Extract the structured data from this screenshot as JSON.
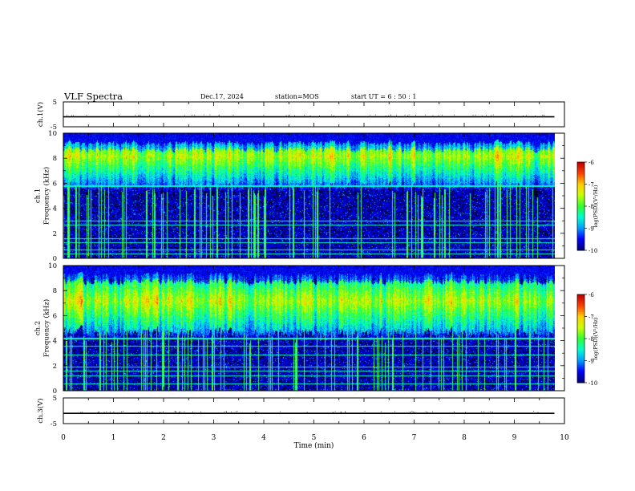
{
  "header": {
    "title": "VLF Spectra",
    "date": "Dec.17, 2024",
    "station": "station=MOS",
    "start": "start  UT =   6 : 50 : 1"
  },
  "chart_data": [
    {
      "type": "line",
      "panel": "ch.1 waveform",
      "ylabel": "ch.1(V)",
      "ylim": [
        -5,
        5
      ],
      "yticks": [
        5,
        -5
      ],
      "xlim": [
        0,
        10
      ],
      "series": [
        {
          "x": [
            0,
            9.8
          ],
          "values": [
            -1,
            -1
          ]
        }
      ]
    },
    {
      "type": "heatmap",
      "panel": "ch.1 spectrogram",
      "ylabel": "ch.1\nFrequency (kHz)",
      "ylim": [
        0,
        10
      ],
      "yticks": [
        0,
        2,
        4,
        6,
        8,
        10
      ],
      "xlim": [
        0,
        10
      ],
      "time_extent_min": [
        0,
        9.8
      ],
      "band_khz": [
        5.5,
        9.5
      ],
      "peak_khz": 8.2,
      "colorbar": {
        "label": "log(PSD)(V²/Hz)",
        "range": [
          -10,
          -6
        ],
        "ticks": [
          -6,
          -7,
          -8,
          -9,
          -10
        ]
      }
    },
    {
      "type": "heatmap",
      "panel": "ch.2 spectrogram",
      "ylabel": "ch.2\nFrequency (kHz)",
      "ylim": [
        0,
        10
      ],
      "yticks": [
        0,
        2,
        4,
        6,
        8,
        10
      ],
      "xlim": [
        0,
        10
      ],
      "time_extent_min": [
        0,
        9.8
      ],
      "band_khz": [
        4.5,
        9.5
      ],
      "peak_khz": 7.2,
      "colorbar": {
        "label": "log(PSD)(V²/Hz)",
        "range": [
          -10,
          -6
        ],
        "ticks": [
          -6,
          -7,
          -8,
          -9,
          -10
        ]
      }
    },
    {
      "type": "line",
      "panel": "ch.3 waveform",
      "ylabel": "ch.3(V)",
      "ylim": [
        -5,
        5
      ],
      "yticks": [
        5,
        -5
      ],
      "xlim": [
        0,
        10
      ],
      "series": [
        {
          "x": [
            0,
            9.8
          ],
          "values": [
            -1,
            -1
          ]
        }
      ]
    }
  ],
  "xaxis": {
    "label": "Time (min)",
    "ticks": [
      0,
      1,
      2,
      3,
      4,
      5,
      6,
      7,
      8,
      9,
      10
    ]
  },
  "colors": {
    "spectro_background": "#000022",
    "colormap": [
      "#00007f",
      "#0000ff",
      "#00a0ff",
      "#00ffcf",
      "#30ff30",
      "#c8ff00",
      "#ffd000",
      "#ff4000",
      "#c00000"
    ]
  }
}
